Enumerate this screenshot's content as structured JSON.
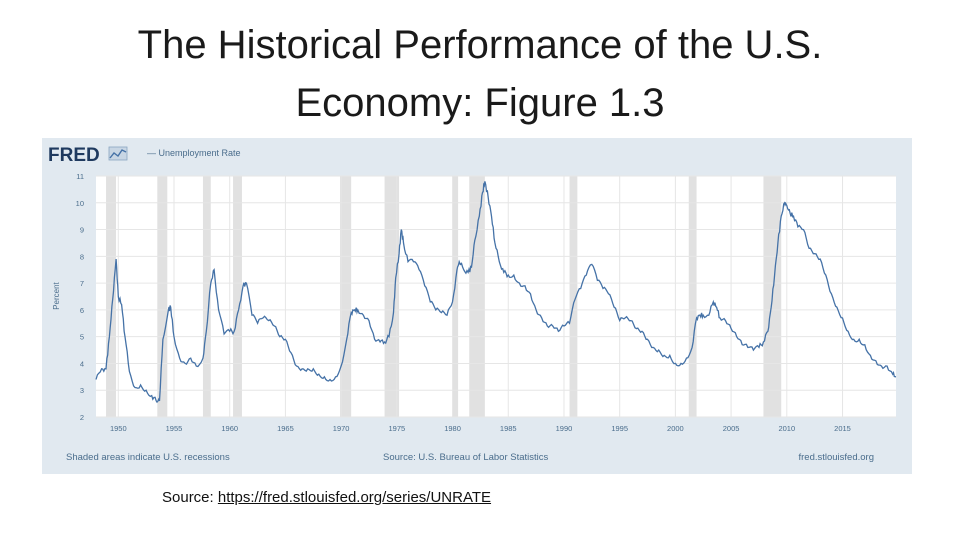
{
  "slide": {
    "title_line1": "The Historical Performance of the U.S.",
    "title_line2": "Economy: Figure 1.3",
    "source_label": "Source:",
    "source_url": "https://fred.stlouisfed.org/series/UNRATE"
  },
  "fred": {
    "logo_text": "FRED",
    "legend_label": "— Unemployment Rate",
    "footer_left": "Shaded areas indicate U.S. recessions",
    "footer_center": "Source: U.S. Bureau of Labor Statistics",
    "footer_right": "fred.stlouisfed.org"
  },
  "colors": {
    "line": "#4572a7",
    "plot_background": "#ffffff",
    "frame_background": "#e1e9f0",
    "recession_shade": "#e1e1e1",
    "logo": "#1f3a5f",
    "footer_text": "#4a6d8c"
  },
  "chart_data": {
    "type": "line",
    "title": "",
    "ylabel": "Percent",
    "xlabel": "",
    "ylim": [
      2,
      11
    ],
    "xlim": [
      1948,
      2019.8
    ],
    "grid": true,
    "legend": "top-left",
    "yticks": [
      "2",
      "3",
      "4",
      "5",
      "6",
      "7",
      "8",
      "9",
      "10",
      "11"
    ],
    "xticks": [
      "1950",
      "1955",
      "1960",
      "1965",
      "1970",
      "1975",
      "1980",
      "1985",
      "1990",
      "1995",
      "2000",
      "2005",
      "2010",
      "2015"
    ],
    "recessions": [
      [
        1948.9,
        1949.8
      ],
      [
        1953.5,
        1954.4
      ],
      [
        1957.6,
        1958.3
      ],
      [
        1960.3,
        1961.1
      ],
      [
        1969.9,
        1970.9
      ],
      [
        1973.9,
        1975.2
      ],
      [
        1980.0,
        1980.5
      ],
      [
        1981.5,
        1982.9
      ],
      [
        1990.5,
        1991.2
      ],
      [
        2001.2,
        2001.9
      ],
      [
        2007.9,
        2009.5
      ]
    ],
    "series": [
      {
        "name": "Unemployment Rate",
        "points": [
          [
            1948.0,
            3.4
          ],
          [
            1948.5,
            3.8
          ],
          [
            1948.9,
            3.8
          ],
          [
            1949.2,
            5.0
          ],
          [
            1949.5,
            6.4
          ],
          [
            1949.8,
            7.9
          ],
          [
            1950.0,
            6.5
          ],
          [
            1950.3,
            6.2
          ],
          [
            1950.6,
            5.0
          ],
          [
            1951.0,
            3.7
          ],
          [
            1951.5,
            3.1
          ],
          [
            1952.0,
            3.2
          ],
          [
            1952.5,
            3.0
          ],
          [
            1953.0,
            2.8
          ],
          [
            1953.4,
            2.6
          ],
          [
            1953.7,
            2.6
          ],
          [
            1954.0,
            4.9
          ],
          [
            1954.5,
            6.0
          ],
          [
            1954.7,
            6.1
          ],
          [
            1955.0,
            5.0
          ],
          [
            1955.5,
            4.2
          ],
          [
            1956.0,
            4.0
          ],
          [
            1956.5,
            4.2
          ],
          [
            1957.0,
            3.9
          ],
          [
            1957.6,
            4.2
          ],
          [
            1957.9,
            5.2
          ],
          [
            1958.3,
            7.0
          ],
          [
            1958.6,
            7.5
          ],
          [
            1959.0,
            6.0
          ],
          [
            1959.5,
            5.1
          ],
          [
            1960.0,
            5.2
          ],
          [
            1960.4,
            5.2
          ],
          [
            1960.8,
            6.0
          ],
          [
            1961.2,
            6.9
          ],
          [
            1961.5,
            7.0
          ],
          [
            1962.0,
            5.8
          ],
          [
            1962.5,
            5.5
          ],
          [
            1963.0,
            5.7
          ],
          [
            1963.5,
            5.6
          ],
          [
            1964.0,
            5.4
          ],
          [
            1964.5,
            5.0
          ],
          [
            1965.0,
            4.9
          ],
          [
            1965.5,
            4.4
          ],
          [
            1966.0,
            3.9
          ],
          [
            1966.5,
            3.8
          ],
          [
            1967.0,
            3.8
          ],
          [
            1967.5,
            3.8
          ],
          [
            1968.0,
            3.6
          ],
          [
            1968.5,
            3.5
          ],
          [
            1969.0,
            3.4
          ],
          [
            1969.5,
            3.5
          ],
          [
            1970.0,
            3.9
          ],
          [
            1970.5,
            4.9
          ],
          [
            1970.9,
            5.9
          ],
          [
            1971.2,
            6.0
          ],
          [
            1971.5,
            6.0
          ],
          [
            1972.0,
            5.8
          ],
          [
            1972.5,
            5.6
          ],
          [
            1973.0,
            4.9
          ],
          [
            1973.5,
            4.8
          ],
          [
            1973.9,
            4.8
          ],
          [
            1974.3,
            5.0
          ],
          [
            1974.7,
            5.9
          ],
          [
            1974.9,
            7.2
          ],
          [
            1975.2,
            8.1
          ],
          [
            1975.4,
            9.0
          ],
          [
            1975.6,
            8.5
          ],
          [
            1976.0,
            7.8
          ],
          [
            1976.5,
            7.8
          ],
          [
            1977.0,
            7.5
          ],
          [
            1977.5,
            6.9
          ],
          [
            1978.0,
            6.3
          ],
          [
            1978.5,
            6.0
          ],
          [
            1979.0,
            5.9
          ],
          [
            1979.5,
            5.8
          ],
          [
            1980.0,
            6.3
          ],
          [
            1980.4,
            7.5
          ],
          [
            1980.6,
            7.8
          ],
          [
            1981.0,
            7.5
          ],
          [
            1981.4,
            7.4
          ],
          [
            1981.7,
            7.6
          ],
          [
            1982.0,
            8.6
          ],
          [
            1982.4,
            9.5
          ],
          [
            1982.7,
            10.4
          ],
          [
            1982.9,
            10.8
          ],
          [
            1983.2,
            10.2
          ],
          [
            1983.5,
            9.5
          ],
          [
            1983.8,
            8.5
          ],
          [
            1984.2,
            7.8
          ],
          [
            1984.6,
            7.4
          ],
          [
            1985.0,
            7.3
          ],
          [
            1985.5,
            7.3
          ],
          [
            1986.0,
            7.0
          ],
          [
            1986.5,
            6.9
          ],
          [
            1987.0,
            6.6
          ],
          [
            1987.5,
            6.0
          ],
          [
            1988.0,
            5.7
          ],
          [
            1988.5,
            5.4
          ],
          [
            1989.0,
            5.4
          ],
          [
            1989.5,
            5.2
          ],
          [
            1990.0,
            5.4
          ],
          [
            1990.5,
            5.5
          ],
          [
            1991.0,
            6.4
          ],
          [
            1991.5,
            6.8
          ],
          [
            1992.0,
            7.3
          ],
          [
            1992.5,
            7.7
          ],
          [
            1993.0,
            7.1
          ],
          [
            1993.5,
            6.8
          ],
          [
            1994.0,
            6.6
          ],
          [
            1994.5,
            6.1
          ],
          [
            1995.0,
            5.6
          ],
          [
            1995.5,
            5.7
          ],
          [
            1996.0,
            5.6
          ],
          [
            1996.5,
            5.3
          ],
          [
            1997.0,
            5.2
          ],
          [
            1997.5,
            4.9
          ],
          [
            1998.0,
            4.6
          ],
          [
            1998.5,
            4.5
          ],
          [
            1999.0,
            4.3
          ],
          [
            1999.5,
            4.3
          ],
          [
            2000.0,
            4.0
          ],
          [
            2000.5,
            4.0
          ],
          [
            2001.0,
            4.2
          ],
          [
            2001.5,
            4.6
          ],
          [
            2001.9,
            5.7
          ],
          [
            2002.2,
            5.8
          ],
          [
            2002.5,
            5.8
          ],
          [
            2003.0,
            5.8
          ],
          [
            2003.4,
            6.3
          ],
          [
            2003.7,
            6.1
          ],
          [
            2004.0,
            5.7
          ],
          [
            2004.5,
            5.6
          ],
          [
            2005.0,
            5.3
          ],
          [
            2005.5,
            5.0
          ],
          [
            2006.0,
            4.7
          ],
          [
            2006.5,
            4.6
          ],
          [
            2007.0,
            4.5
          ],
          [
            2007.5,
            4.6
          ],
          [
            2007.9,
            4.8
          ],
          [
            2008.3,
            5.2
          ],
          [
            2008.6,
            6.1
          ],
          [
            2008.9,
            7.3
          ],
          [
            2009.2,
            8.5
          ],
          [
            2009.5,
            9.5
          ],
          [
            2009.8,
            10.0
          ],
          [
            2010.0,
            9.9
          ],
          [
            2010.3,
            9.6
          ],
          [
            2010.6,
            9.5
          ],
          [
            2011.0,
            9.1
          ],
          [
            2011.5,
            9.0
          ],
          [
            2012.0,
            8.3
          ],
          [
            2012.5,
            8.1
          ],
          [
            2013.0,
            7.9
          ],
          [
            2013.5,
            7.3
          ],
          [
            2014.0,
            6.6
          ],
          [
            2014.5,
            6.1
          ],
          [
            2015.0,
            5.7
          ],
          [
            2015.5,
            5.2
          ],
          [
            2016.0,
            4.9
          ],
          [
            2016.5,
            4.9
          ],
          [
            2017.0,
            4.7
          ],
          [
            2017.5,
            4.3
          ],
          [
            2018.0,
            4.1
          ],
          [
            2018.5,
            3.9
          ],
          [
            2019.0,
            3.9
          ],
          [
            2019.5,
            3.6
          ],
          [
            2019.8,
            3.5
          ]
        ]
      }
    ]
  }
}
